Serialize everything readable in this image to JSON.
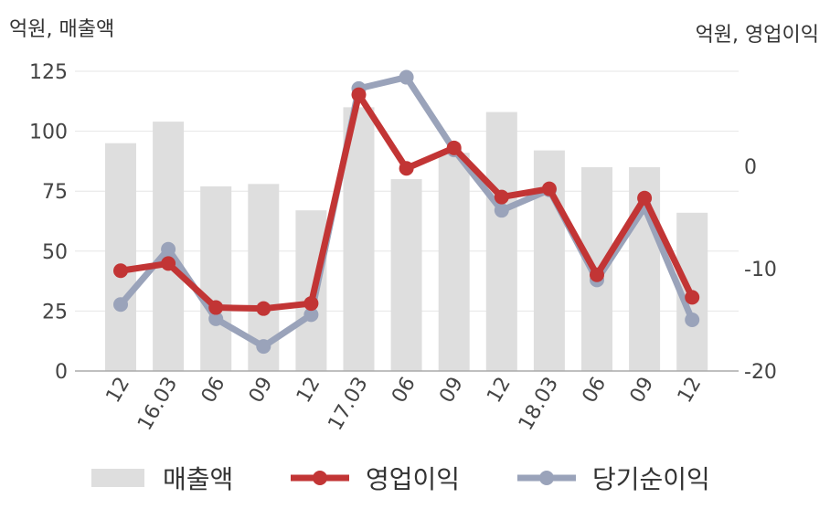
{
  "chart_data": {
    "type": "bar+line",
    "categories": [
      "12",
      "16.03",
      "06",
      "09",
      "12",
      "17.03",
      "06",
      "09",
      "12",
      "18.03",
      "06",
      "09",
      "12"
    ],
    "left_axis": {
      "unit_label": "억원, 매출액",
      "ticks": [
        0,
        25,
        50,
        75,
        100,
        125
      ],
      "ylim": [
        0,
        125
      ]
    },
    "right_axis": {
      "unit_label": "억원, 영업이익",
      "ticks": [
        0,
        -10,
        -20
      ],
      "ylim": [
        -20,
        0
      ]
    },
    "series": [
      {
        "name": "매출액",
        "kind": "bar",
        "axis": "left",
        "color": "#dedede",
        "values": [
          95,
          104,
          77,
          78,
          67,
          110,
          80,
          91,
          108,
          92,
          85,
          85,
          66
        ]
      },
      {
        "name": "영업이익",
        "kind": "line",
        "axis": "right",
        "color": "#c23535",
        "values": [
          -10.2,
          -9.5,
          -13.8,
          -13.9,
          -13.4,
          7.0,
          -0.2,
          1.8,
          -3.0,
          -2.2,
          -10.6,
          -3.1,
          -12.8
        ]
      },
      {
        "name": "당기순이익",
        "kind": "line",
        "axis": "right",
        "color": "#9aa3ba",
        "values": [
          -13.5,
          -8.1,
          -14.9,
          -17.6,
          -14.5,
          7.6,
          8.7,
          1.6,
          -4.3,
          -2.3,
          -11.1,
          -4.0,
          -15.0
        ]
      }
    ],
    "grid": true,
    "legend_position": "bottom"
  }
}
